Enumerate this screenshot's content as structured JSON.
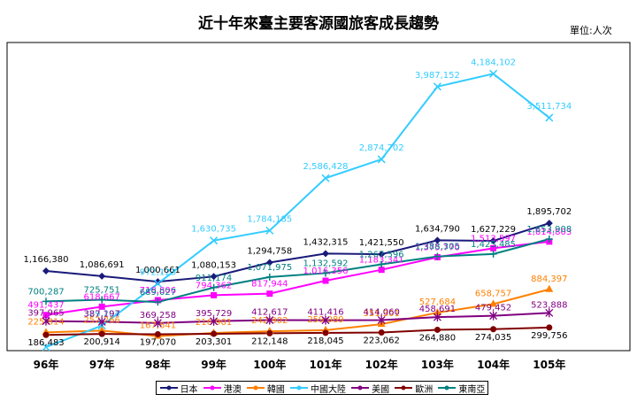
{
  "chart_data": {
    "type": "line",
    "title": "近十年來臺主要客源國旅客成長趨勢",
    "unit": "單位:人次",
    "categories": [
      "96年",
      "97年",
      "98年",
      "99年",
      "100年",
      "101年",
      "102年",
      "103年",
      "104年",
      "105年"
    ],
    "ylim": [
      0,
      4500000
    ],
    "series": [
      {
        "name": "日本",
        "color": "#1a1a7a",
        "marker": "diamond",
        "values": [
          1166380,
          1086691,
          1000661,
          1080153,
          1294758,
          1432315,
          1421550,
          1634790,
          1627229,
          1895702
        ],
        "labels": [
          "1,166,380",
          "1,086,691",
          "1,000,661",
          "1,080,153",
          "1,294,758",
          "1,432,315",
          "1,421,550",
          "1,634,790",
          "1,627,229",
          "1,895,702"
        ]
      },
      {
        "name": "港澳",
        "color": "#ff00ff",
        "marker": "square",
        "values": [
          491437,
          618667,
          718806,
          794362,
          817944,
          1016356,
          1183341,
          1375770,
          1513597,
          1614803
        ],
        "labels": [
          "491,437",
          "618,667",
          "718,806",
          "794,362",
          "817,944",
          "1,016,356",
          "1,183,341",
          "1,375,770",
          "1,513,597",
          "1,614,803"
        ]
      },
      {
        "name": "韓國",
        "color": "#ff8000",
        "marker": "triangle",
        "values": [
          225814,
          252266,
          167641,
          216901,
          242902,
          259089,
          351301,
          527684,
          658757,
          884397
        ],
        "labels": [
          "225,814",
          "252,266",
          "167,641",
          "216,901",
          "242,902",
          "259,089",
          "351,301",
          "527,684",
          "658,757",
          "884,397"
        ]
      },
      {
        "name": "中國大陸",
        "color": "#33ccff",
        "marker": "cross",
        "values": [
          0,
          329204,
          972123,
          1630735,
          1784185,
          2586428,
          2874702,
          3987152,
          4184102,
          3511734
        ],
        "labels": [
          "",
          "329,204",
          "972,123",
          "1,630,735",
          "1,784,185",
          "2,586,428",
          "2,874,702",
          "3,987,152",
          "4,184,102",
          "3,511,734"
        ]
      },
      {
        "name": "美國",
        "color": "#800080",
        "marker": "star",
        "values": [
          397965,
          387197,
          369258,
          395729,
          412617,
          411416,
          414060,
          458691,
          479452,
          523888
        ],
        "labels": [
          "397,965",
          "387,197",
          "369,258",
          "395,729",
          "412,617",
          "411,416",
          "414,060",
          "458,691",
          "479,452",
          "523,888"
        ]
      },
      {
        "name": "歐洲",
        "color": "#800000",
        "marker": "circle",
        "values": [
          186483,
          200914,
          197070,
          203301,
          212148,
          218045,
          223062,
          264880,
          274035,
          299756
        ],
        "labels": [
          "186,483",
          "200,914",
          "197,070",
          "203,301",
          "212,148",
          "218,045",
          "223,062",
          "264,880",
          "274,035",
          "299,756"
        ]
      },
      {
        "name": "東南亞",
        "color": "#008080",
        "marker": "plus",
        "values": [
          700287,
          725751,
          689027,
          911174,
          1071975,
          1132592,
          1267596,
          1388305,
          1425485,
          1653908
        ],
        "labels": [
          "700,287",
          "725,751",
          "689,027",
          "911,174",
          "1,071,975",
          "1,132,592",
          "1,267,596",
          "1,388,305",
          "1,425,485",
          "1,653,908"
        ]
      }
    ]
  }
}
